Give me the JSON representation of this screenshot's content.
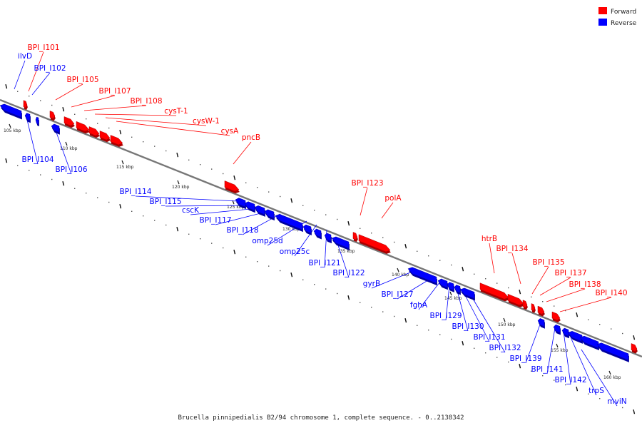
{
  "caption": "Brucella pinnipedialis B2/94 chromosome 1, complete sequence. - 0..2138342",
  "legend": [
    {
      "label": "Forward",
      "color": "#ff0000"
    },
    {
      "label": "Reverse",
      "color": "#0000ff"
    }
  ],
  "colors": {
    "forward": "#ff0000",
    "reverse": "#0000ff",
    "axis": "#777777"
  },
  "ticks": [
    "105 kbp",
    "110 kbp",
    "115 kbp",
    "120 kbp",
    "125 kbp",
    "130 kbp",
    "135 kbp",
    "140 kbp",
    "145 kbp",
    "150 kbp",
    "155 kbp",
    "160 kbp"
  ],
  "forward_labels": [
    "BPI_I101",
    "BPI_I105",
    "BPI_I107",
    "BPI_I108",
    "cysT-1",
    "cysW-1",
    "cysA",
    "pncB",
    "BPI_I123",
    "polA",
    "htrB",
    "BPI_I134",
    "BPI_I135",
    "BPI_I137",
    "BPI_I138",
    "BPI_I140"
  ],
  "reverse_labels": [
    "ilvD",
    "BPI_I102",
    "BPI_I104",
    "BPI_I106",
    "BPI_I114",
    "BPI_I115",
    "cscK",
    "BPI_I117",
    "BPI_I118",
    "omp25d",
    "omp25c",
    "BPI_I121",
    "BPI_I122",
    "gyrB",
    "BPI_I127",
    "fghA",
    "BPI_I129",
    "BPI_I130",
    "BPI_I131",
    "BPI_I132",
    "BPI_I139",
    "BPI_I141",
    "BPI_I142",
    "trpS",
    "mviN"
  ]
}
